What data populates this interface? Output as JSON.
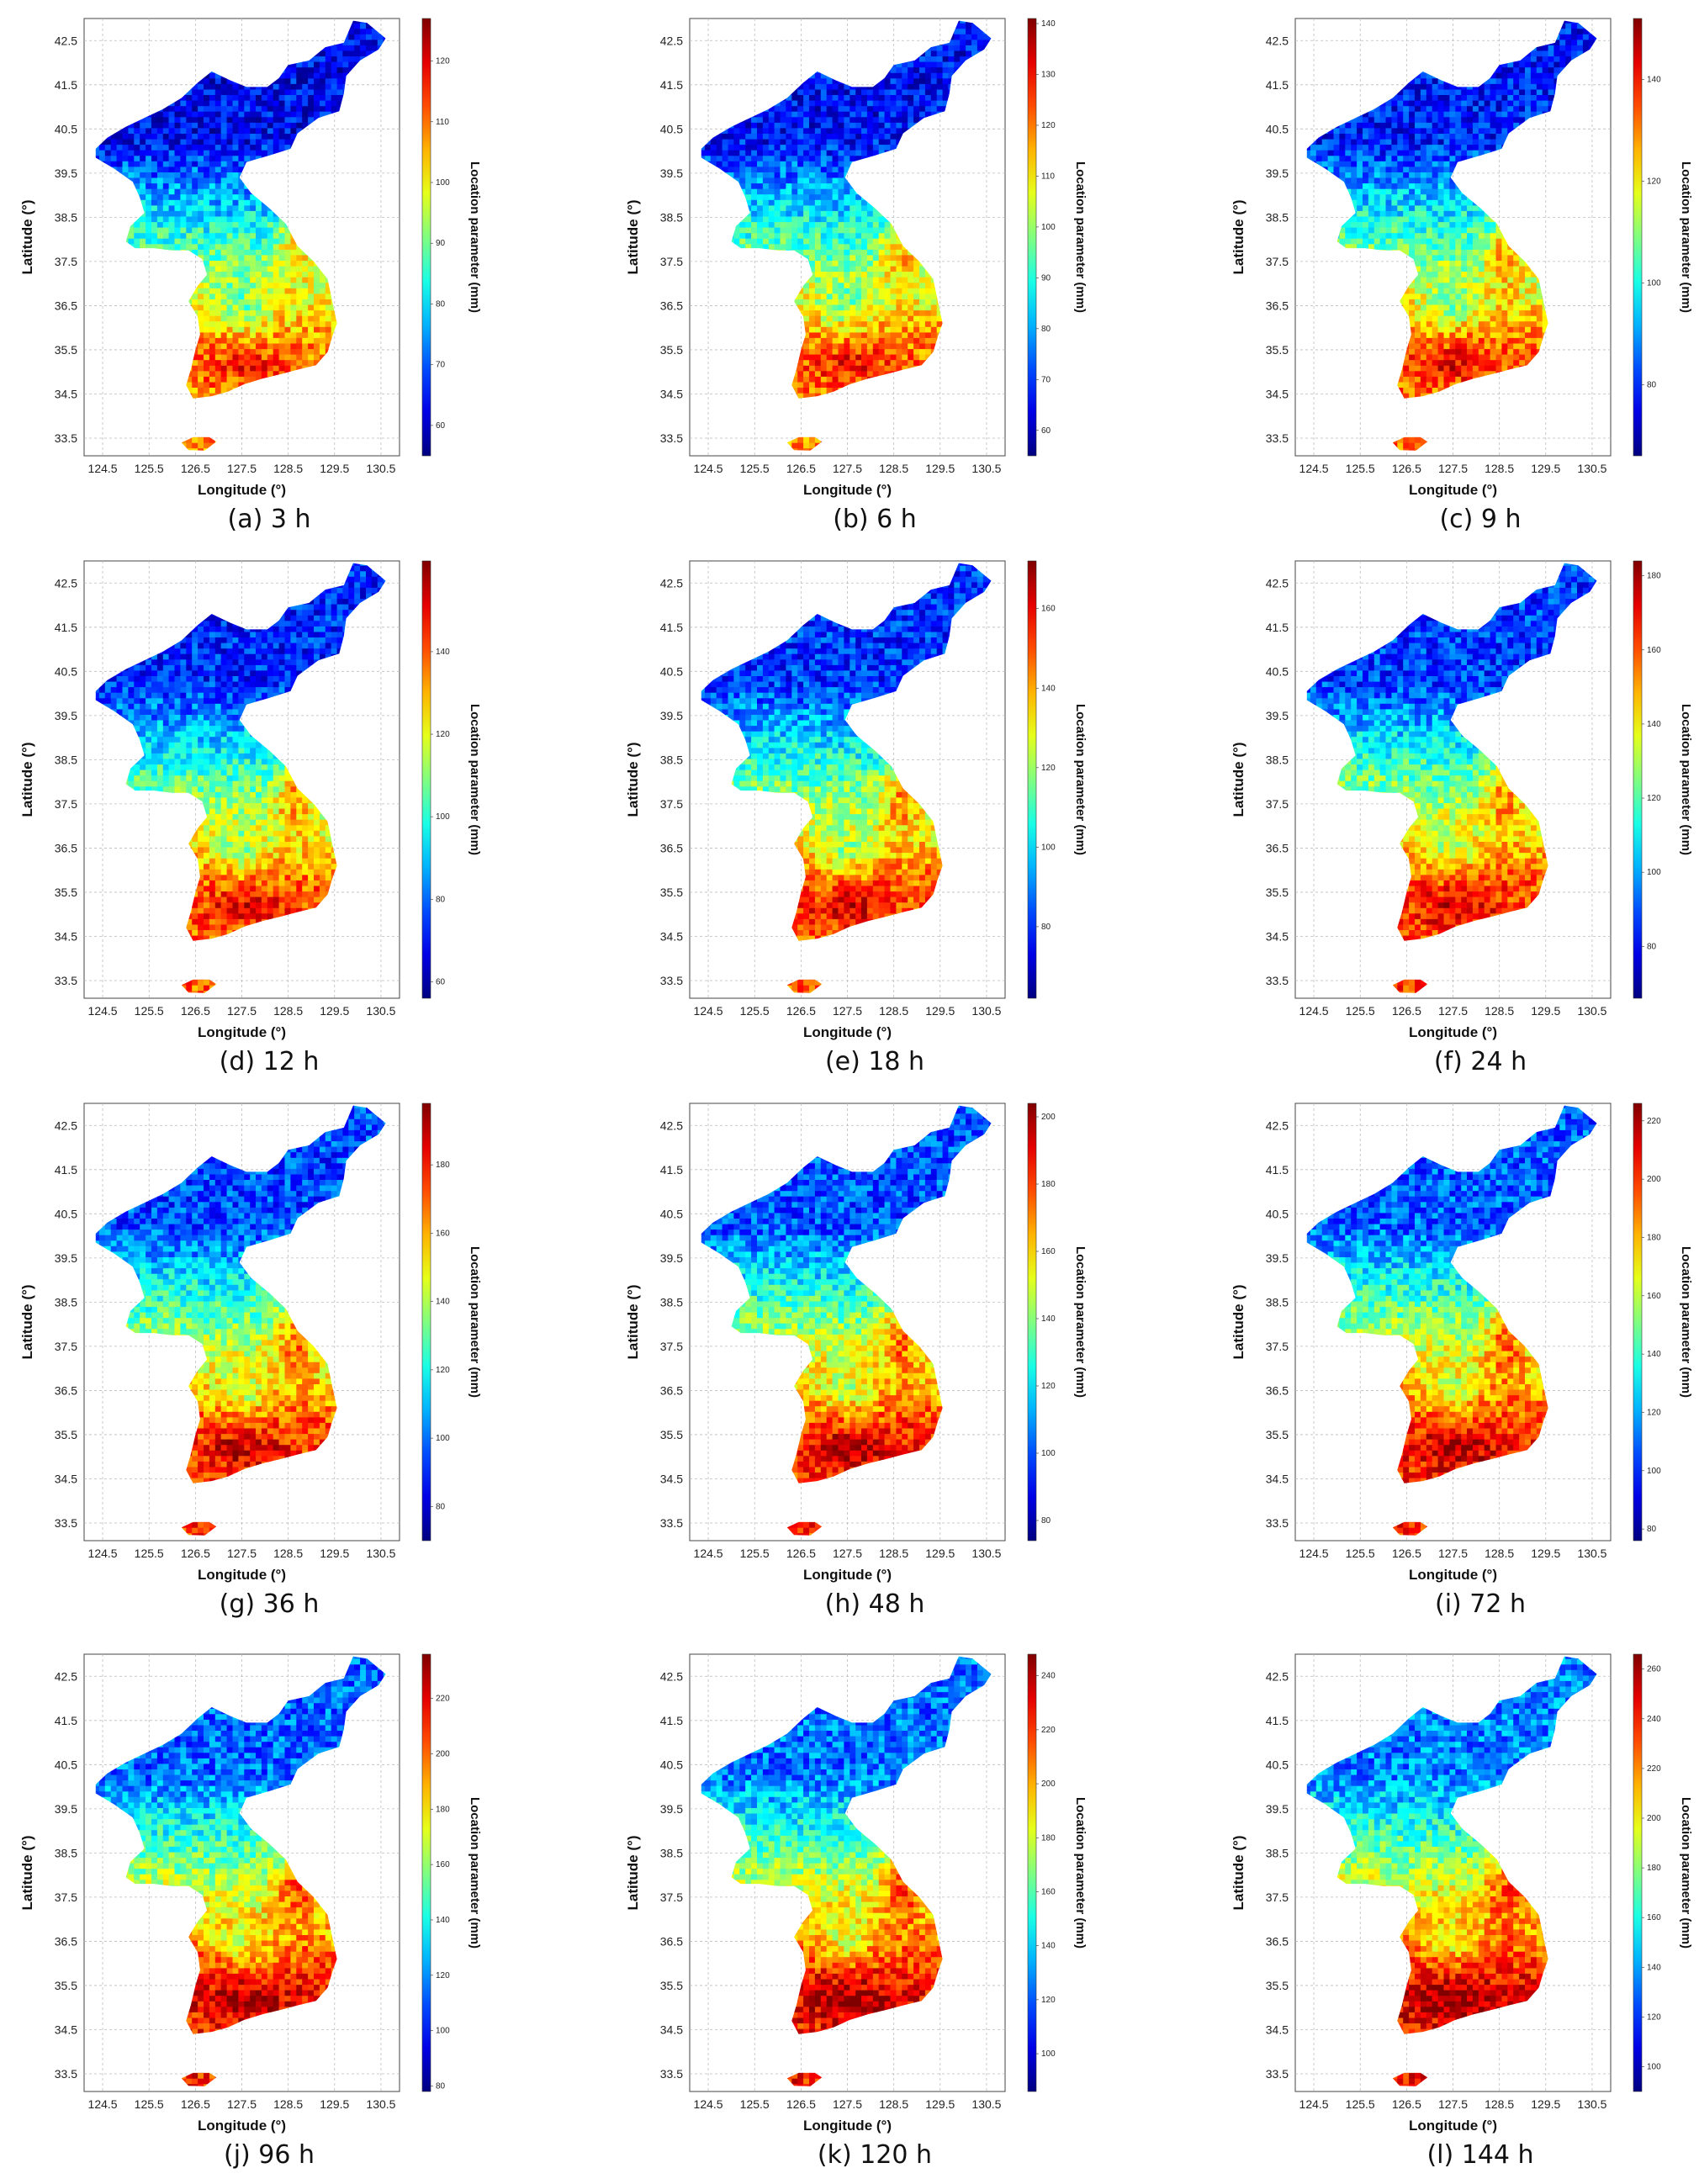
{
  "common": {
    "x_label": "Longitude (°)",
    "y_label": "Latitude (°)",
    "colorbar_label": "Location parameter (mm)",
    "x_ticks": [
      "124.5",
      "125.5",
      "126.5",
      "127.5",
      "128.5",
      "129.5",
      "130.5"
    ],
    "y_ticks": [
      "42.5",
      "41.5",
      "40.5",
      "39.5",
      "38.5",
      "37.5",
      "36.5",
      "35.5",
      "34.5",
      "33.5"
    ],
    "colormap": "jet",
    "colors": {
      "low": "#00008f",
      "mid": "#7fff7f",
      "high": "#800000",
      "grid": "#bbbbbb"
    }
  },
  "panels": [
    {
      "caption": "(a) 3 h",
      "colorbar_ticks": [
        "60",
        "70",
        "80",
        "90",
        "100",
        "110",
        "120"
      ],
      "cb_min": 55,
      "cb_max": 127
    },
    {
      "caption": "(b) 6 h",
      "colorbar_ticks": [
        "60",
        "70",
        "80",
        "90",
        "100",
        "110",
        "120",
        "130",
        "140"
      ],
      "cb_min": 55,
      "cb_max": 141
    },
    {
      "caption": "(c) 9 h",
      "colorbar_ticks": [
        "80",
        "100",
        "120",
        "140"
      ],
      "cb_min": 66,
      "cb_max": 152
    },
    {
      "caption": "(d) 12 h",
      "colorbar_ticks": [
        "60",
        "80",
        "100",
        "120",
        "140"
      ],
      "cb_min": 56,
      "cb_max": 162
    },
    {
      "caption": "(e) 18 h",
      "colorbar_ticks": [
        "80",
        "100",
        "120",
        "140",
        "160"
      ],
      "cb_min": 62,
      "cb_max": 172
    },
    {
      "caption": "(f) 24 h",
      "colorbar_ticks": [
        "80",
        "100",
        "120",
        "140",
        "160",
        "180"
      ],
      "cb_min": 66,
      "cb_max": 184
    },
    {
      "caption": "(g) 36 h",
      "colorbar_ticks": [
        "80",
        "100",
        "120",
        "140",
        "160",
        "180"
      ],
      "cb_min": 70,
      "cb_max": 198
    },
    {
      "caption": "(h) 48 h",
      "colorbar_ticks": [
        "80",
        "100",
        "120",
        "140",
        "160",
        "180",
        "200"
      ],
      "cb_min": 74,
      "cb_max": 204
    },
    {
      "caption": "(i) 72 h",
      "colorbar_ticks": [
        "80",
        "100",
        "120",
        "140",
        "160",
        "180",
        "200",
        "220"
      ],
      "cb_min": 76,
      "cb_max": 226
    },
    {
      "caption": "(j) 96 h",
      "colorbar_ticks": [
        "80",
        "100",
        "120",
        "140",
        "160",
        "180",
        "200",
        "220"
      ],
      "cb_min": 78,
      "cb_max": 236
    },
    {
      "caption": "(k) 120 h",
      "colorbar_ticks": [
        "100",
        "120",
        "140",
        "160",
        "180",
        "200",
        "220",
        "240"
      ],
      "cb_min": 86,
      "cb_max": 248
    },
    {
      "caption": "(l) 144 h",
      "colorbar_ticks": [
        "100",
        "120",
        "140",
        "160",
        "180",
        "200",
        "220",
        "240",
        "260"
      ],
      "cb_min": 90,
      "cb_max": 266
    }
  ]
}
